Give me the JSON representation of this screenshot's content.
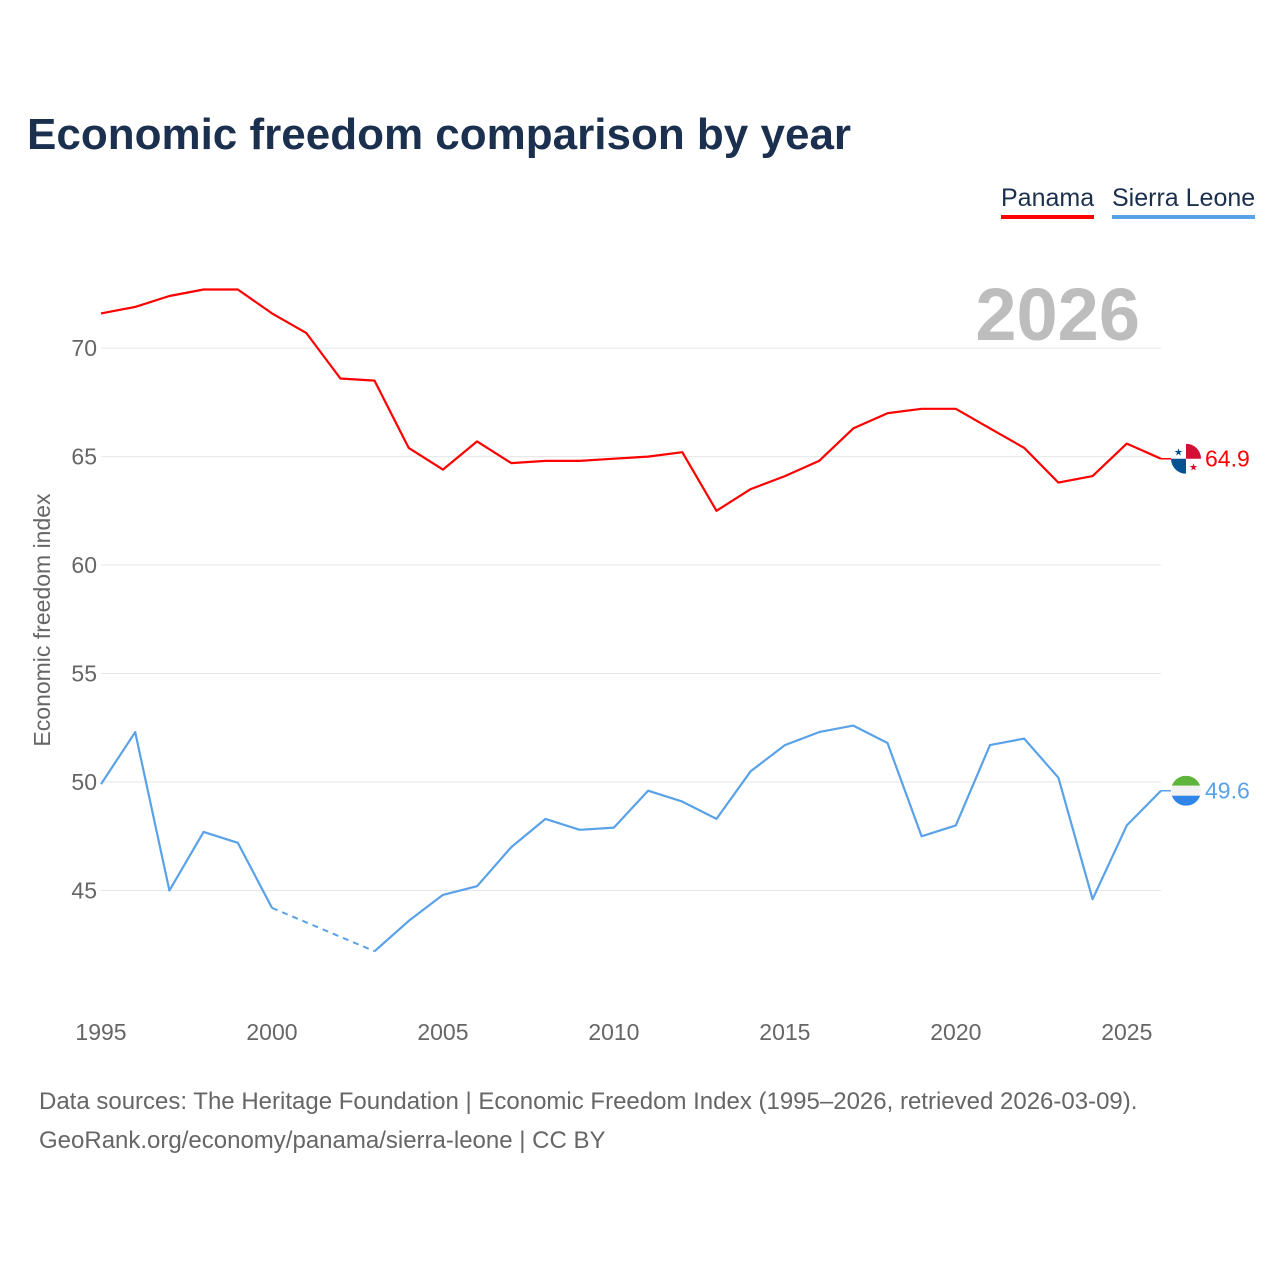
{
  "chart_data": {
    "type": "line",
    "title": "Economic freedom comparison by year",
    "xlabel": "",
    "ylabel": "Economic freedom index",
    "xlim": [
      1995,
      2026
    ],
    "ylim": [
      40,
      73
    ],
    "x_ticks": [
      "1995",
      "2000",
      "2005",
      "2010",
      "2015",
      "2020",
      "2025"
    ],
    "y_ticks": [
      "45",
      "50",
      "55",
      "60",
      "65",
      "70"
    ],
    "grid": true,
    "legend_position": "top-right",
    "year_watermark": "2026",
    "x": [
      1995,
      1996,
      1997,
      1998,
      1999,
      2000,
      2001,
      2002,
      2003,
      2004,
      2005,
      2006,
      2007,
      2008,
      2009,
      2010,
      2011,
      2012,
      2013,
      2014,
      2015,
      2016,
      2017,
      2018,
      2019,
      2020,
      2021,
      2022,
      2023,
      2024,
      2025,
      2026
    ],
    "series": [
      {
        "name": "Panama",
        "color": "#ff0000",
        "end_label": "64.9",
        "values": [
          71.6,
          71.9,
          72.4,
          72.7,
          72.7,
          71.6,
          70.7,
          68.6,
          68.5,
          65.4,
          64.4,
          65.7,
          64.7,
          64.8,
          64.8,
          64.9,
          65.0,
          65.2,
          62.5,
          63.5,
          64.1,
          64.8,
          66.3,
          67.0,
          67.2,
          67.2,
          66.3,
          65.4,
          63.8,
          64.1,
          65.6,
          64.9
        ]
      },
      {
        "name": "Sierra Leone",
        "color": "#5aa2e8",
        "end_label": "49.6",
        "values": [
          49.9,
          52.3,
          45.0,
          47.7,
          47.2,
          44.2,
          null,
          null,
          42.2,
          43.6,
          44.8,
          45.2,
          47.0,
          48.3,
          47.8,
          47.9,
          49.6,
          49.1,
          48.3,
          50.5,
          51.7,
          52.3,
          52.6,
          51.8,
          47.5,
          48.0,
          51.7,
          52.0,
          50.2,
          44.6,
          48.0,
          49.6
        ]
      }
    ]
  },
  "footer": {
    "line1": "Data sources: The Heritage Foundation | Economic Freedom Index (1995–2026, retrieved 2026-03-09).",
    "line2": "GeoRank.org/economy/panama/sierra-leone | CC BY"
  }
}
